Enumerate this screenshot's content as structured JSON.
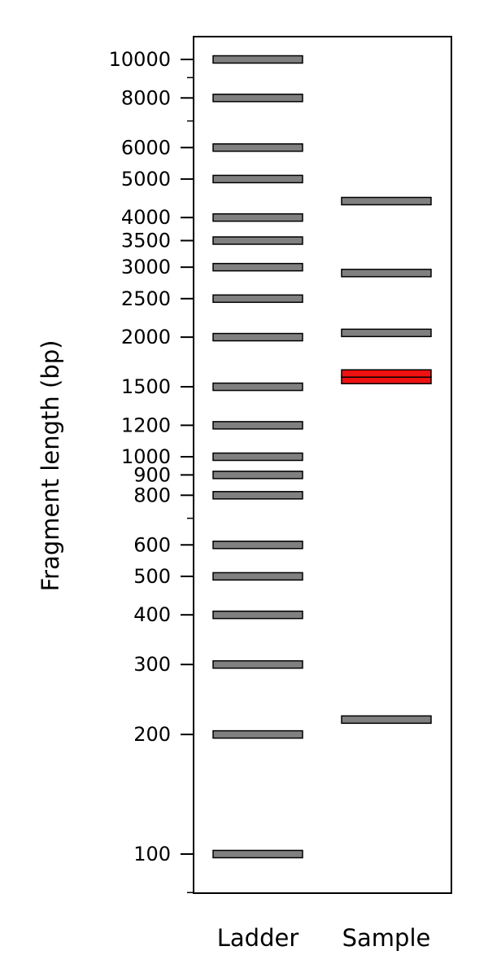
{
  "chart_data": {
    "type": "gel",
    "ylabel": "Fragment length (bp)",
    "y_scale": "log",
    "ylim": [
      75,
      12500
    ],
    "y_ticks": [
      100,
      200,
      300,
      400,
      500,
      600,
      800,
      900,
      1000,
      1200,
      1500,
      2000,
      2500,
      3000,
      3500,
      4000,
      5000,
      6000,
      8000,
      10000
    ],
    "y_tick_labels": [
      "100",
      "200",
      "300",
      "400",
      "500",
      "600",
      "800",
      "900",
      "1000",
      "1200",
      "1500",
      "2000",
      "2500",
      "3000",
      "3500",
      "4000",
      "5000",
      "6000",
      "8000",
      "10000"
    ],
    "y_minor_ticks": [
      80,
      700,
      7000,
      9000
    ],
    "lanes": [
      "Ladder",
      "Sample"
    ],
    "bands": [
      {
        "lane": "Ladder",
        "values": [
          100,
          200,
          300,
          400,
          500,
          600,
          800,
          900,
          1000,
          1200,
          1500,
          2000,
          2500,
          3000,
          3500,
          4000,
          5000,
          6000,
          8000,
          10000
        ]
      },
      {
        "lane": "Sample",
        "values": [
          218,
          1560,
          1620,
          2050,
          2900,
          4400
        ]
      }
    ],
    "highlighted_bands": [
      {
        "lane": "Sample",
        "values": [
          1560,
          1620
        ]
      }
    ],
    "colors": {
      "band": "#808080",
      "highlight": "#ee1111",
      "outline": "#000000"
    }
  }
}
